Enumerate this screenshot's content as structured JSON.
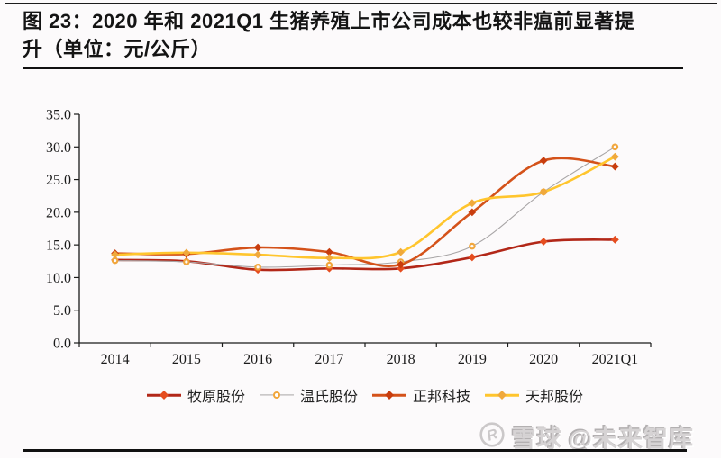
{
  "page": {
    "background": "#FCFAFB"
  },
  "header": {
    "title_line1": "图 23：2020 年和 2021Q1 生猪养殖上市公司成本也较非瘟前显著提",
    "title_line2": "升（单位：元/公斤）"
  },
  "chart_data": {
    "type": "line",
    "title": "图 23：2020年和2021Q1生猪养殖上市公司成本也较非瘟前显著提升",
    "unit": "元/公斤",
    "xlabel": "",
    "ylabel": "",
    "categories": [
      "2014",
      "2015",
      "2016",
      "2017",
      "2018",
      "2019",
      "2020",
      "2021Q1"
    ],
    "series": [
      {
        "name": "牧原股份",
        "color": "#B22718",
        "marker_color": "#E54D1F",
        "marker": "diamond",
        "line_width": 2.6,
        "values": [
          12.7,
          12.5,
          11.2,
          11.4,
          11.4,
          13.1,
          15.5,
          15.8
        ]
      },
      {
        "name": "温氏股份",
        "color": "#A8A5A6",
        "marker_color": "#F1A63C",
        "marker": "ring",
        "line_width": 1.1,
        "values": [
          12.6,
          12.4,
          11.6,
          11.9,
          12.4,
          14.8,
          23.1,
          30.0
        ]
      },
      {
        "name": "正邦科技",
        "color": "#D4521A",
        "marker_color": "#C83D0E",
        "marker": "diamond",
        "line_width": 2.6,
        "values": [
          13.7,
          13.6,
          14.6,
          13.9,
          12.0,
          20.0,
          27.9,
          27.0
        ]
      },
      {
        "name": "天邦股份",
        "color": "#FFC52D",
        "marker_color": "#F0A93C",
        "marker": "diamond",
        "line_width": 2.6,
        "values": [
          13.5,
          13.8,
          13.5,
          13.0,
          13.9,
          21.4,
          23.1,
          28.5
        ]
      }
    ],
    "ylim": [
      0,
      35
    ],
    "ytick_step": 5,
    "ytick_labels": [
      "0.0",
      "5.0",
      "10.0",
      "15.0",
      "20.0",
      "25.0",
      "30.0",
      "35.0"
    ],
    "grid": false,
    "legend_position": "bottom"
  },
  "watermark": {
    "brand": "雪球",
    "handle": "@未来智库"
  }
}
